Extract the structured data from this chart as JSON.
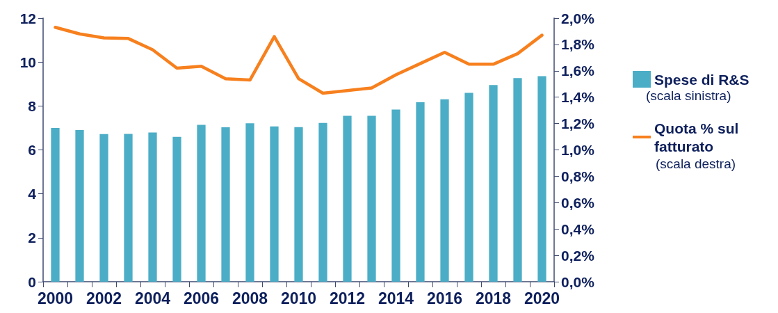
{
  "chart_data": {
    "type": "bar",
    "categories": [
      "2000",
      null,
      "2002",
      null,
      "2004",
      null,
      "2006",
      null,
      "2008",
      null,
      "2010",
      null,
      "2012",
      null,
      "2014",
      null,
      "2016",
      null,
      "2018",
      null,
      "2020"
    ],
    "series": [
      {
        "name": "Spese di R&S",
        "color": "#4badc6",
        "values": [
          7.0,
          6.9,
          6.72,
          6.73,
          6.79,
          6.59,
          7.14,
          7.03,
          7.21,
          7.07,
          7.04,
          7.23,
          7.55,
          7.55,
          7.84,
          8.17,
          8.3,
          8.6,
          8.95,
          9.27,
          9.36
        ]
      },
      {
        "name": "Quota % sul fatturato",
        "type": "line",
        "axis": "y2",
        "color": "#f7801e",
        "values": [
          1.93,
          1.88,
          1.85,
          1.845,
          1.76,
          1.62,
          1.635,
          1.54,
          1.53,
          1.86,
          1.54,
          1.43,
          1.45,
          1.47,
          1.57,
          1.655,
          1.74,
          1.65,
          1.65,
          1.73,
          1.87
        ]
      }
    ],
    "ylim": [
      0,
      12
    ],
    "yticks": [
      0,
      2,
      4,
      6,
      8,
      10,
      12
    ],
    "y2lim": [
      0,
      2
    ],
    "y2ticks": [
      {
        "value": 0,
        "label": "0,0%"
      },
      {
        "value": 0.2,
        "label": "0,2%"
      },
      {
        "value": 0.4,
        "label": "0,4%"
      },
      {
        "value": 0.6,
        "label": "0,6%"
      },
      {
        "value": 0.8,
        "label": "0,8%"
      },
      {
        "value": 1.0,
        "label": "1,0%"
      },
      {
        "value": 1.2,
        "label": "1,2%"
      },
      {
        "value": 1.4,
        "label": "1,4%"
      },
      {
        "value": 1.6,
        "label": "1,6%"
      },
      {
        "value": 1.8,
        "label": "1,8%"
      },
      {
        "value": 2.0,
        "label": "2,0%"
      }
    ],
    "annotations": [
      "(scala sinistra)",
      "(scala destra)"
    ],
    "legend": "right",
    "grid": false,
    "marker": "none",
    "line_style": "solid"
  }
}
